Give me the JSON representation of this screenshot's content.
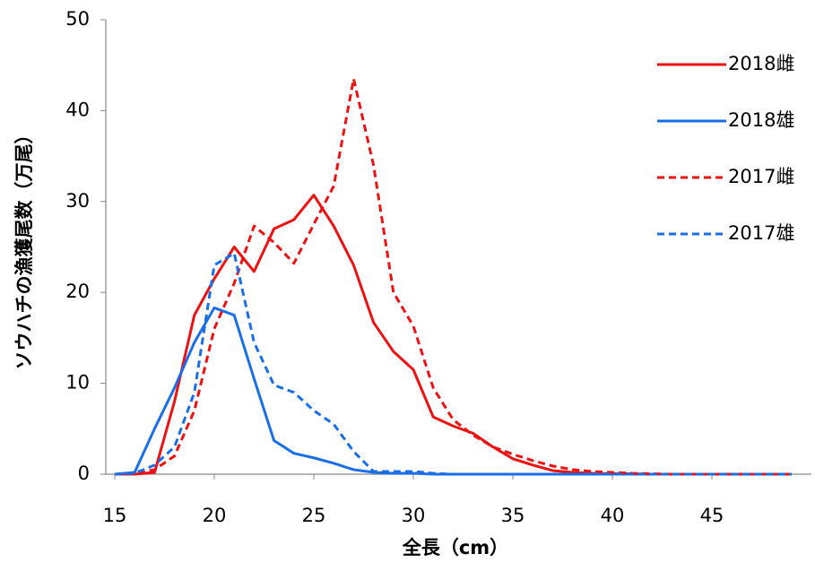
{
  "chart_data": {
    "type": "line",
    "x_label": "全長（cm）",
    "y_label": "ソウハチの漁獲尾数（万尾）",
    "x": [
      15,
      16,
      17,
      18,
      19,
      20,
      21,
      22,
      23,
      24,
      25,
      26,
      27,
      28,
      29,
      30,
      31,
      32,
      33,
      34,
      35,
      36,
      37,
      38,
      39,
      40,
      41,
      42,
      43,
      44,
      45,
      46,
      47,
      48,
      49
    ],
    "xlim": [
      15,
      50
    ],
    "xticks": [
      15,
      20,
      25,
      30,
      35,
      40,
      45
    ],
    "ylim": [
      0,
      50
    ],
    "yticks": [
      0,
      10,
      20,
      30,
      40,
      50
    ],
    "legend": "right",
    "series": [
      {
        "name": "2018雌",
        "color": "#ee1111",
        "style": "solid",
        "values": [
          0,
          0,
          0.2,
          8,
          17.5,
          21.5,
          25,
          22.3,
          27,
          28,
          30.7,
          27.3,
          23,
          16.7,
          13.5,
          11.5,
          6.3,
          5.3,
          4.5,
          3,
          1.7,
          1,
          0.4,
          0.2,
          0.1,
          0.05,
          0.05,
          0,
          0,
          0,
          0,
          0,
          0,
          0,
          0
        ]
      },
      {
        "name": "2018雄",
        "color": "#1a6fe8",
        "style": "solid",
        "values": [
          0,
          0.2,
          5,
          9.5,
          14.5,
          18.3,
          17.5,
          10.5,
          3.7,
          2.3,
          1.8,
          1.2,
          0.5,
          0.2,
          0.1,
          0.1,
          0,
          0,
          0,
          0,
          0,
          0,
          0,
          0,
          0,
          0,
          0,
          0,
          0,
          0,
          0,
          0,
          0,
          0,
          0
        ]
      },
      {
        "name": "2017雌",
        "color": "#ee1111",
        "style": "dashed",
        "values": [
          0,
          0.1,
          0.5,
          2,
          7,
          16,
          21,
          27.3,
          25.5,
          23.2,
          27.5,
          31.7,
          43.5,
          34,
          20,
          16.3,
          9.5,
          6,
          4.3,
          3,
          2.2,
          1.5,
          0.9,
          0.5,
          0.3,
          0.2,
          0.1,
          0.05,
          0,
          0,
          0,
          0,
          0,
          0,
          0
        ]
      },
      {
        "name": "2017雄",
        "color": "#1a6fe8",
        "style": "dashed",
        "values": [
          0,
          0.1,
          1,
          3,
          9,
          23,
          24.3,
          14.5,
          9.8,
          9,
          7,
          5.5,
          2.5,
          0.3,
          0.3,
          0.3,
          0.1,
          0,
          0,
          0,
          0,
          0,
          0,
          0,
          0,
          0,
          0,
          0,
          0,
          0,
          0,
          0,
          0,
          0,
          0
        ]
      }
    ]
  }
}
